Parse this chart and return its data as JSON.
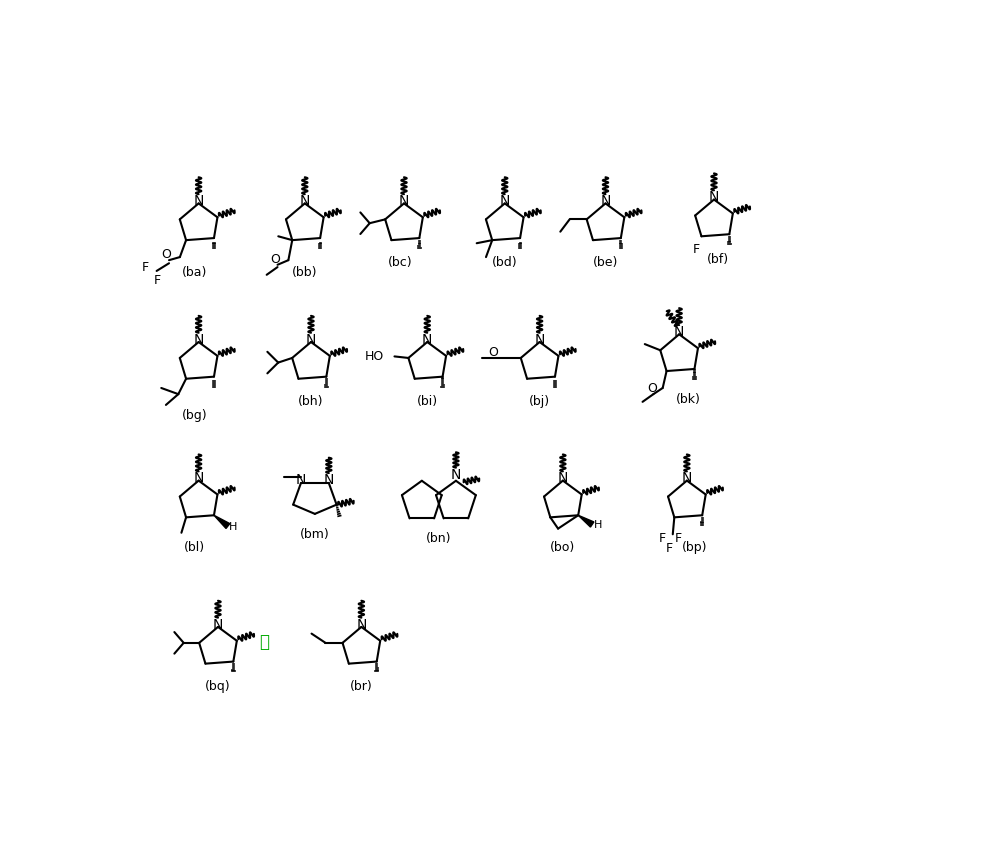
{
  "background_color": "#ffffff",
  "line_color": "#000000",
  "or_color": "#00aa00",
  "compounds": [
    "ba",
    "bb",
    "bc",
    "bd",
    "be",
    "bf",
    "bg",
    "bh",
    "bi",
    "bj",
    "bk",
    "bl",
    "bm",
    "bn",
    "bo",
    "bp",
    "bq",
    "br"
  ]
}
